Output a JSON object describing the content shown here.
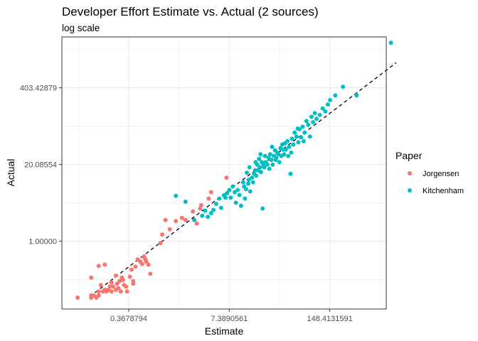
{
  "chart_data": {
    "type": "scatter",
    "title": "Developer Effort Estimate vs. Actual (2 sources)",
    "subtitle": "log scale",
    "xlabel": "Estimate",
    "ylabel": "Actual",
    "x_scale": "log",
    "y_scale": "log",
    "xlim": [
      0.05,
      800
    ],
    "ylim": [
      0.0705,
      2950
    ],
    "x_ticks": [
      0.3678794,
      7.3890561,
      148.4131591
    ],
    "x_tick_labels": [
      "0.3678794",
      "7.3890561",
      "148.4131591"
    ],
    "y_ticks": [
      1.0,
      20.08554,
      403.42879
    ],
    "y_tick_labels": [
      "1.00000",
      "20.08554",
      "403.42879"
    ],
    "grid": true,
    "reference_line": {
      "slope": 1,
      "intercept": 0,
      "style": "dashed"
    },
    "legend": {
      "title": "Paper",
      "position": "right"
    },
    "colors": {
      "Jorgensen": "#F8766D",
      "Kitchenham": "#00BFC4",
      "reference_line": "#000000",
      "panel_border": "#333333",
      "grid": "#ebebeb"
    },
    "series": [
      {
        "name": "Jorgensen",
        "color": "#F8766D",
        "points": [
          [
            0.08,
            0.11
          ],
          [
            0.12,
            0.11
          ],
          [
            0.12,
            0.12
          ],
          [
            0.13,
            0.12
          ],
          [
            0.14,
            0.11
          ],
          [
            0.15,
            0.12
          ],
          [
            0.15,
            0.14
          ],
          [
            0.17,
            0.14
          ],
          [
            0.18,
            0.15
          ],
          [
            0.19,
            0.14
          ],
          [
            0.21,
            0.17
          ],
          [
            0.23,
            0.17
          ],
          [
            0.22,
            0.14
          ],
          [
            0.25,
            0.15
          ],
          [
            0.26,
            0.19
          ],
          [
            0.27,
            0.16
          ],
          [
            0.29,
            0.14
          ],
          [
            0.32,
            0.18
          ],
          [
            0.34,
            0.17
          ],
          [
            0.31,
            0.22
          ],
          [
            0.38,
            0.25
          ],
          [
            0.35,
            0.14
          ],
          [
            0.42,
            0.19
          ],
          [
            0.12,
            0.24
          ],
          [
            0.15,
            0.38
          ],
          [
            0.18,
            0.4
          ],
          [
            0.22,
            0.2
          ],
          [
            0.25,
            0.26
          ],
          [
            0.3,
            0.24
          ],
          [
            0.4,
            0.33
          ],
          [
            0.45,
            0.37
          ],
          [
            0.48,
            0.49
          ],
          [
            0.52,
            0.45
          ],
          [
            0.55,
            0.41
          ],
          [
            0.58,
            0.55
          ],
          [
            0.6,
            0.5
          ],
          [
            0.62,
            0.45
          ],
          [
            0.66,
            0.4
          ],
          [
            0.7,
            0.28
          ],
          [
            0.42,
            0.21
          ],
          [
            0.95,
            0.93
          ],
          [
            1.0,
            1.3
          ],
          [
            1.1,
            2.3
          ],
          [
            1.25,
            1.6
          ],
          [
            1.5,
            2.2
          ],
          [
            1.8,
            2.5
          ],
          [
            2.0,
            2.3
          ],
          [
            2.5,
            3.2
          ],
          [
            2.8,
            2.0
          ],
          [
            3.1,
            3.6
          ],
          [
            3.2,
            4.1
          ],
          [
            4.0,
            5.3
          ],
          [
            4.3,
            6.8
          ],
          [
            6.8,
            12.0
          ],
          [
            0.16,
            0.18
          ],
          [
            0.2,
            0.15
          ],
          [
            0.28,
            0.21
          ]
        ]
      },
      {
        "name": "Kitchenham",
        "color": "#00BFC4",
        "points": [
          [
            1.5,
            5.9
          ],
          [
            2.0,
            4.7
          ],
          [
            2.6,
            2.3
          ],
          [
            3.3,
            2.7
          ],
          [
            3.6,
            3.3
          ],
          [
            3.9,
            2.6
          ],
          [
            4.3,
            3.0
          ],
          [
            4.6,
            3.4
          ],
          [
            5.0,
            4.3
          ],
          [
            5.5,
            5.3
          ],
          [
            5.8,
            3.7
          ],
          [
            6.3,
            6.0
          ],
          [
            6.6,
            5.5
          ],
          [
            6.9,
            6.5
          ],
          [
            7.4,
            7.4
          ],
          [
            7.7,
            5.5
          ],
          [
            8.2,
            8.5
          ],
          [
            8.7,
            6.8
          ],
          [
            9.0,
            4.5
          ],
          [
            9.5,
            7.4
          ],
          [
            10.0,
            6.1
          ],
          [
            10.5,
            4.0
          ],
          [
            11.2,
            10.0
          ],
          [
            11.5,
            8.5
          ],
          [
            11.8,
            5.3
          ],
          [
            12.2,
            7.7
          ],
          [
            12.5,
            14.5
          ],
          [
            13.0,
            9.5
          ],
          [
            13.2,
            11.0
          ],
          [
            13.5,
            18.0
          ],
          [
            13.8,
            7.0
          ],
          [
            14.5,
            12.0
          ],
          [
            15.0,
            10.0
          ],
          [
            15.5,
            14.0
          ],
          [
            16.0,
            16.0
          ],
          [
            16.5,
            13.0
          ],
          [
            17.0,
            20.0
          ],
          [
            17.5,
            16.0
          ],
          [
            18.0,
            25.0
          ],
          [
            18.5,
            18.0
          ],
          [
            19.0,
            15.0
          ],
          [
            19.5,
            22.0
          ],
          [
            20.0,
            3.6
          ],
          [
            20.5,
            20.0
          ],
          [
            21.0,
            18.0
          ],
          [
            21.5,
            28.0
          ],
          [
            22.0,
            22.0
          ],
          [
            23.0,
            20.0
          ],
          [
            24.0,
            26.0
          ],
          [
            25.0,
            30.0
          ],
          [
            26.0,
            24.0
          ],
          [
            27.0,
            20.0
          ],
          [
            28.0,
            28.0
          ],
          [
            29.0,
            35.0
          ],
          [
            30.0,
            26.0
          ],
          [
            31.0,
            32.0
          ],
          [
            32.0,
            30.0
          ],
          [
            33.0,
            22.0
          ],
          [
            34.0,
            38.0
          ],
          [
            35.0,
            28.0
          ],
          [
            36.0,
            44.0
          ],
          [
            38.0,
            30.0
          ],
          [
            40.0,
            36.0
          ],
          [
            42.0,
            50.0
          ],
          [
            44.0,
            40.0
          ],
          [
            46.0,
            14.0
          ],
          [
            48.0,
            55.0
          ],
          [
            50.0,
            44.0
          ],
          [
            52.0,
            70.0
          ],
          [
            55.0,
            60.0
          ],
          [
            58.0,
            48.0
          ],
          [
            60.0,
            80.0
          ],
          [
            63.0,
            58.0
          ],
          [
            66.0,
            88.0
          ],
          [
            70.0,
            70.0
          ],
          [
            74.0,
            110.0
          ],
          [
            78.0,
            95.0
          ],
          [
            82.0,
            60.0
          ],
          [
            86.0,
            130.0
          ],
          [
            90.0,
            105.0
          ],
          [
            95.0,
            150.0
          ],
          [
            100.0,
            120.0
          ],
          [
            110.0,
            140.0
          ],
          [
            120.0,
            180.0
          ],
          [
            130.0,
            160.0
          ],
          [
            140.0,
            210.0
          ],
          [
            150.0,
            250.0
          ],
          [
            175.0,
            300.0
          ],
          [
            220.0,
            420.0
          ],
          [
            330.0,
            300.0
          ],
          [
            920.0,
            2350.0
          ],
          [
            16.2,
            22.0
          ],
          [
            18.8,
            30.0
          ],
          [
            24.5,
            17.0
          ],
          [
            26.5,
            40.0
          ],
          [
            29.5,
            24.0
          ],
          [
            37.0,
            36.0
          ],
          [
            39.0,
            46.0
          ],
          [
            43.0,
            28.0
          ],
          [
            47.0,
            32.0
          ],
          [
            57.0,
            82.0
          ],
          [
            68.0,
            50.0
          ]
        ]
      }
    ]
  }
}
